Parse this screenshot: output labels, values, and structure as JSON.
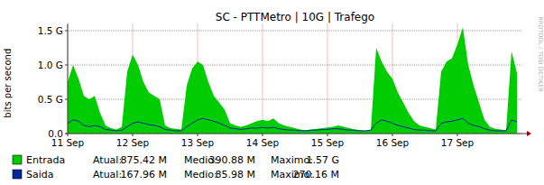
{
  "chart_data": {
    "type": "line",
    "title": "SC - PTTMetro | 10G | Trafego",
    "y_label": "bits per second",
    "watermark": "RRDTOOL / TOBI OETIKER",
    "x": [
      0,
      2,
      4,
      6,
      8,
      10,
      12,
      14,
      16,
      18,
      20,
      22,
      24,
      26,
      28,
      30,
      32,
      34,
      36,
      38,
      40,
      42,
      44,
      46,
      48,
      50,
      52,
      54,
      56,
      58,
      60,
      62,
      64,
      66,
      68,
      70,
      72,
      74,
      76,
      78,
      80,
      82,
      84,
      86,
      88,
      90,
      92,
      94,
      96,
      98,
      100,
      102,
      104,
      106,
      108,
      110,
      112,
      114,
      116,
      118,
      120,
      122,
      124,
      126,
      128,
      130,
      132,
      134,
      136,
      138,
      140,
      142,
      144,
      146,
      148,
      150,
      152,
      154,
      156,
      158,
      160,
      162,
      164,
      166
    ],
    "xlim": [
      0,
      168
    ],
    "xticks": [
      {
        "value": 0,
        "label": "11 Sep"
      },
      {
        "value": 24,
        "label": "12 Sep"
      },
      {
        "value": 48,
        "label": "13 Sep"
      },
      {
        "value": 72,
        "label": "14 Sep"
      },
      {
        "value": 96,
        "label": "15 Sep"
      },
      {
        "value": 120,
        "label": "16 Sep"
      },
      {
        "value": 144,
        "label": "17 Sep"
      }
    ],
    "ylim": [
      0,
      1.6
    ],
    "yticks": [
      {
        "value": 0,
        "label": "0.0"
      },
      {
        "value": 0.5,
        "label": "0.5 G"
      },
      {
        "value": 1.0,
        "label": "1.0 G"
      },
      {
        "value": 1.5,
        "label": "1.5 G"
      }
    ],
    "grid": true,
    "legend": "bottom",
    "series": [
      {
        "name": "Entrada",
        "type": "area",
        "color": "#00cc00",
        "values": [
          0.75,
          1.0,
          0.8,
          0.55,
          0.5,
          0.55,
          0.3,
          0.12,
          0.08,
          0.06,
          0.1,
          0.9,
          1.15,
          1.0,
          0.75,
          0.6,
          0.55,
          0.5,
          0.12,
          0.08,
          0.07,
          0.06,
          0.7,
          0.95,
          1.05,
          1.0,
          0.75,
          0.55,
          0.45,
          0.35,
          0.15,
          0.12,
          0.1,
          0.12,
          0.15,
          0.18,
          0.2,
          0.18,
          0.22,
          0.15,
          0.12,
          0.1,
          0.08,
          0.06,
          0.05,
          0.06,
          0.07,
          0.08,
          0.09,
          0.1,
          0.12,
          0.1,
          0.08,
          0.06,
          0.05,
          0.04,
          0.05,
          1.25,
          1.05,
          0.9,
          0.8,
          0.6,
          0.45,
          0.3,
          0.18,
          0.12,
          0.1,
          0.08,
          0.06,
          0.9,
          1.05,
          1.1,
          1.3,
          1.55,
          1.0,
          0.7,
          0.45,
          0.2,
          0.1,
          0.07,
          0.06,
          0.05,
          1.2,
          0.88
        ],
        "stats": [
          {
            "label": "Atual:",
            "value": "875.42 M"
          },
          {
            "label": "Medio:",
            "value": "390.88 M"
          },
          {
            "label": "Maximo:",
            "value": "1.57 G"
          }
        ]
      },
      {
        "name": "Saida",
        "type": "line",
        "color": "#002a97",
        "values": [
          0.15,
          0.2,
          0.18,
          0.12,
          0.1,
          0.12,
          0.1,
          0.06,
          0.05,
          0.04,
          0.05,
          0.1,
          0.15,
          0.17,
          0.15,
          0.13,
          0.12,
          0.1,
          0.06,
          0.05,
          0.04,
          0.04,
          0.1,
          0.15,
          0.2,
          0.22,
          0.2,
          0.18,
          0.15,
          0.12,
          0.08,
          0.07,
          0.06,
          0.07,
          0.08,
          0.08,
          0.09,
          0.08,
          0.09,
          0.07,
          0.06,
          0.05,
          0.05,
          0.04,
          0.04,
          0.05,
          0.05,
          0.06,
          0.06,
          0.07,
          0.07,
          0.06,
          0.05,
          0.05,
          0.04,
          0.04,
          0.05,
          0.15,
          0.2,
          0.18,
          0.15,
          0.12,
          0.1,
          0.08,
          0.06,
          0.05,
          0.05,
          0.04,
          0.04,
          0.15,
          0.17,
          0.18,
          0.2,
          0.22,
          0.15,
          0.12,
          0.1,
          0.07,
          0.05,
          0.04,
          0.04,
          0.04,
          0.2,
          0.17
        ],
        "stats": [
          {
            "label": "Atual:",
            "value": "167.96 M"
          },
          {
            "label": "Medio:",
            "value": "85.98 M"
          },
          {
            "label": "Maximo:",
            "value": "270.16 M"
          }
        ]
      }
    ]
  }
}
